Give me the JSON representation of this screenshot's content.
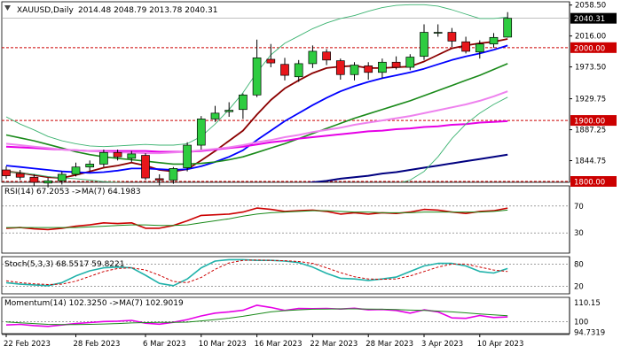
{
  "colors": {
    "bull": "#2ecc40",
    "bear": "#e8161b",
    "ma_red": "#8b0000",
    "ma_blue": "#0000ff",
    "ma_green": "#1a8a1a",
    "ma_magenta": "#e600e6",
    "ma_pink": "#ee82ee",
    "ma_navy": "#000080",
    "bb": "#3cb371",
    "level_line": "#cc0000",
    "rsi_line": "#cc0000",
    "rsi_ma": "#1a8a1a",
    "stoch_main": "#20b2aa",
    "stoch_signal": "#cc0000",
    "mom_line": "#e600e6",
    "mom_ma": "#1a8a1a"
  },
  "chart_data": [
    {
      "type": "candlestick",
      "title": "XAUUSD,Daily",
      "ohlc_label": "2014.48 2048.79 2013.78 2040.31",
      "price_axis": {
        "range": [
          1815,
          2063
        ],
        "ticks": [
          2058.5,
          2016.0,
          1973.5,
          1929.75,
          1887.25,
          1844.75
        ]
      },
      "price_axis_labels": [
        "2058.50",
        "2016.00",
        "1973.50",
        "1929.75",
        "1887.25",
        "1844.75"
      ],
      "price_box": {
        "value": 2040.31,
        "label": "2040.31"
      },
      "levels": [
        {
          "value": 2000,
          "label": "2000.00"
        },
        {
          "value": 1900,
          "label": "1900.00"
        },
        {
          "value": 1800,
          "label": "1800.00"
        }
      ],
      "candles": [
        {
          "o": 1832,
          "h": 1837,
          "l": 1820,
          "c": 1824
        },
        {
          "o": 1827,
          "h": 1832,
          "l": 1818,
          "c": 1822
        },
        {
          "o": 1822,
          "h": 1826,
          "l": 1810,
          "c": 1815
        },
        {
          "o": 1814,
          "h": 1821,
          "l": 1808,
          "c": 1817
        },
        {
          "o": 1817,
          "h": 1830,
          "l": 1812,
          "c": 1826
        },
        {
          "o": 1826,
          "h": 1842,
          "l": 1823,
          "c": 1836
        },
        {
          "o": 1836,
          "h": 1845,
          "l": 1830,
          "c": 1840
        },
        {
          "o": 1840,
          "h": 1860,
          "l": 1836,
          "c": 1856
        },
        {
          "o": 1856,
          "h": 1860,
          "l": 1845,
          "c": 1850
        },
        {
          "o": 1848,
          "h": 1858,
          "l": 1843,
          "c": 1854
        },
        {
          "o": 1852,
          "h": 1855,
          "l": 1818,
          "c": 1821
        },
        {
          "o": 1820,
          "h": 1826,
          "l": 1811,
          "c": 1818
        },
        {
          "o": 1818,
          "h": 1836,
          "l": 1813,
          "c": 1834
        },
        {
          "o": 1835,
          "h": 1870,
          "l": 1830,
          "c": 1866
        },
        {
          "o": 1866,
          "h": 1906,
          "l": 1860,
          "c": 1902
        },
        {
          "o": 1902,
          "h": 1920,
          "l": 1898,
          "c": 1910
        },
        {
          "o": 1912,
          "h": 1925,
          "l": 1905,
          "c": 1914
        },
        {
          "o": 1915,
          "h": 1937,
          "l": 1902,
          "c": 1935
        },
        {
          "o": 1935,
          "h": 2011,
          "l": 1932,
          "c": 1986
        },
        {
          "o": 1984,
          "h": 2005,
          "l": 1973,
          "c": 1979
        },
        {
          "o": 1977,
          "h": 1986,
          "l": 1955,
          "c": 1962
        },
        {
          "o": 1960,
          "h": 1983,
          "l": 1953,
          "c": 1978
        },
        {
          "o": 1978,
          "h": 2003,
          "l": 1972,
          "c": 1995
        },
        {
          "o": 1994,
          "h": 1998,
          "l": 1976,
          "c": 1983
        },
        {
          "o": 1982,
          "h": 1985,
          "l": 1956,
          "c": 1963
        },
        {
          "o": 1963,
          "h": 1980,
          "l": 1955,
          "c": 1976
        },
        {
          "o": 1975,
          "h": 1980,
          "l": 1956,
          "c": 1966
        },
        {
          "o": 1966,
          "h": 1985,
          "l": 1958,
          "c": 1980
        },
        {
          "o": 1980,
          "h": 1988,
          "l": 1970,
          "c": 1973
        },
        {
          "o": 1973,
          "h": 1991,
          "l": 1969,
          "c": 1987
        },
        {
          "o": 1988,
          "h": 2032,
          "l": 1983,
          "c": 2021
        },
        {
          "o": 2020,
          "h": 2032,
          "l": 2015,
          "c": 2021
        },
        {
          "o": 2021,
          "h": 2027,
          "l": 2001,
          "c": 2009
        },
        {
          "o": 2008,
          "h": 2015,
          "l": 1992,
          "c": 1995
        },
        {
          "o": 1994,
          "h": 2010,
          "l": 1985,
          "c": 2005
        },
        {
          "o": 2005,
          "h": 2020,
          "l": 2000,
          "c": 2014
        },
        {
          "o": 2014.48,
          "h": 2048.79,
          "l": 2013.78,
          "c": 2040.31
        }
      ],
      "series": [
        {
          "style": "ma_red",
          "values": [
            1830,
            1828,
            1825,
            1822,
            1821,
            1825,
            1830,
            1835,
            1838,
            1842,
            1838,
            1832,
            1830,
            1833,
            1845,
            1858,
            1872,
            1886,
            1908,
            1928,
            1944,
            1955,
            1965,
            1972,
            1974,
            1975,
            1972,
            1972,
            1973,
            1974,
            1981,
            1990,
            1999,
            2003,
            2006,
            2008,
            2012
          ]
        },
        {
          "style": "ma_blue",
          "values": [
            1838,
            1836,
            1834,
            1832,
            1830,
            1829,
            1828,
            1829,
            1831,
            1834,
            1834,
            1833,
            1832,
            1833,
            1837,
            1843,
            1850,
            1859,
            1873,
            1886,
            1899,
            1910,
            1921,
            1931,
            1940,
            1947,
            1953,
            1958,
            1962,
            1966,
            1971,
            1977,
            1983,
            1988,
            1992,
            1997,
            2003
          ]
        },
        {
          "style": "ma_green",
          "values": [
            1880,
            1876,
            1872,
            1867,
            1862,
            1857,
            1853,
            1850,
            1848,
            1846,
            1844,
            1842,
            1840,
            1840,
            1841,
            1843,
            1846,
            1850,
            1856,
            1862,
            1868,
            1875,
            1882,
            1889,
            1896,
            1903,
            1909,
            1915,
            1921,
            1927,
            1934,
            1941,
            1948,
            1955,
            1962,
            1970,
            1978
          ]
        },
        {
          "style": "ma_magenta",
          "values": [
            1864,
            1863,
            1862,
            1861,
            1860,
            1859,
            1858,
            1858,
            1858,
            1858,
            1858,
            1857,
            1857,
            1857,
            1858,
            1860,
            1862,
            1864,
            1867,
            1870,
            1872,
            1875,
            1877,
            1879,
            1881,
            1883,
            1885,
            1886,
            1888,
            1889,
            1891,
            1892,
            1894,
            1895,
            1897,
            1898,
            1899
          ]
        },
        {
          "style": "ma_pink",
          "values": [
            1868,
            1866,
            1864,
            1862,
            1860,
            1859,
            1858,
            1857,
            1856,
            1856,
            1855,
            1855,
            1856,
            1857,
            1859,
            1861,
            1863,
            1866,
            1870,
            1873,
            1877,
            1880,
            1884,
            1887,
            1890,
            1894,
            1897,
            1900,
            1903,
            1906,
            1910,
            1914,
            1918,
            1922,
            1927,
            1933,
            1940
          ]
        },
        {
          "style": "ma_navy",
          "values": [
            1779,
            1780,
            1781,
            1782,
            1783,
            1784,
            1785,
            1786,
            1787,
            1789,
            1790,
            1791,
            1792,
            1794,
            1796,
            1798,
            1800,
            1802,
            1805,
            1807,
            1810,
            1812,
            1815,
            1817,
            1820,
            1822,
            1824,
            1827,
            1829,
            1832,
            1835,
            1838,
            1841,
            1844,
            1847,
            1850,
            1853
          ]
        },
        {
          "style": "bb",
          "values": [
            1905,
            1895,
            1887,
            1878,
            1872,
            1868,
            1865,
            1864,
            1865,
            1866,
            1867,
            1866,
            1866,
            1868,
            1878,
            1895,
            1915,
            1938,
            1966,
            1990,
            2006,
            2016,
            2026,
            2034,
            2040,
            2044,
            2050,
            2055,
            2058,
            2059,
            2059,
            2057,
            2052,
            2046,
            2040,
            2040,
            2042
          ]
        },
        {
          "style": "bb",
          "values": [
            1830,
            1828,
            1826,
            1823,
            1821,
            1820,
            1818,
            1816,
            1815,
            1814,
            1812,
            1810,
            1808,
            1806,
            1805,
            1802,
            1800,
            1800,
            1800,
            1800,
            1800,
            1800,
            1800,
            1801,
            1802,
            1804,
            1806,
            1809,
            1813,
            1818,
            1830,
            1850,
            1875,
            1895,
            1910,
            1922,
            1932
          ]
        }
      ]
    },
    {
      "type": "line",
      "label": "RSI(14) 67.2053 ->MA(7) 64.1983",
      "levels": [
        70,
        30
      ],
      "y_axis_labels": [
        "70",
        "30"
      ],
      "range": [
        0,
        100
      ],
      "series": [
        {
          "style": "rsi_line",
          "values": [
            37,
            38,
            36,
            35,
            37,
            40,
            42,
            45,
            44,
            45,
            37,
            37,
            41,
            48,
            56,
            57,
            58,
            61,
            67,
            65,
            62,
            63,
            64,
            62,
            58,
            60,
            58,
            60,
            59,
            61,
            65,
            64,
            61,
            59,
            62,
            63,
            67
          ]
        },
        {
          "style": "rsi_ma",
          "values": [
            38,
            38,
            38,
            38,
            38,
            38,
            39,
            40,
            41,
            42,
            42,
            41,
            41,
            42,
            45,
            48,
            51,
            55,
            58,
            60,
            61,
            62,
            63,
            63,
            62,
            61,
            61,
            60,
            60,
            60,
            61,
            61,
            61,
            61,
            61,
            62,
            64
          ]
        }
      ]
    },
    {
      "type": "line",
      "label": "Stoch(5,3,3) 68.5517 59.8221",
      "levels": [
        80,
        20
      ],
      "y_axis_labels": [
        "80",
        "20"
      ],
      "range": [
        0,
        100
      ],
      "series": [
        {
          "style": "stoch_main",
          "values": [
            30,
            26,
            24,
            22,
            30,
            48,
            62,
            70,
            72,
            70,
            50,
            28,
            22,
            40,
            70,
            88,
            92,
            92,
            90,
            90,
            88,
            84,
            72,
            55,
            42,
            40,
            36,
            40,
            45,
            60,
            75,
            82,
            82,
            75,
            60,
            56,
            68
          ]
        },
        {
          "style": "stoch_signal",
          "values": [
            35,
            30,
            27,
            25,
            26,
            34,
            47,
            60,
            68,
            70,
            64,
            50,
            33,
            30,
            44,
            66,
            83,
            90,
            91,
            90,
            89,
            87,
            82,
            70,
            57,
            46,
            40,
            39,
            40,
            48,
            60,
            72,
            80,
            80,
            72,
            64,
            60
          ]
        }
      ]
    },
    {
      "type": "line",
      "label": "Momentum(14) 102.3250 ->MA(7) 102.9019",
      "levels": [
        100
      ],
      "y_axis_labels": [
        "110.15",
        "100",
        "94.7319"
      ],
      "range": [
        94,
        112
      ],
      "series": [
        {
          "style": "mom_line",
          "values": [
            98.3,
            98.6,
            98.0,
            97.6,
            98.3,
            99.0,
            99.5,
            100.0,
            100.2,
            100.6,
            99.2,
            98.7,
            99.6,
            101.0,
            102.8,
            104.2,
            104.8,
            105.6,
            108.1,
            107.0,
            105.5,
            106.5,
            106.4,
            106.5,
            106.2,
            106.6,
            105.8,
            106.0,
            105.5,
            104.2,
            105.8,
            104.8,
            101.8,
            101.6,
            103.0,
            102.0,
            102.3
          ]
        },
        {
          "style": "mom_ma",
          "values": [
            99.8,
            99.4,
            99.0,
            98.6,
            98.5,
            98.5,
            98.6,
            98.8,
            99.0,
            99.3,
            99.5,
            99.6,
            99.6,
            99.7,
            100.3,
            101.0,
            101.7,
            102.6,
            103.7,
            104.8,
            105.4,
            105.8,
            106.1,
            106.2,
            106.3,
            106.3,
            106.2,
            106.1,
            106.0,
            105.7,
            105.5,
            105.2,
            104.8,
            104.3,
            103.8,
            103.3,
            102.9
          ]
        }
      ]
    }
  ],
  "x_axis": {
    "labels": [
      {
        "index": 0,
        "text": "22 Feb 2023"
      },
      {
        "index": 5,
        "text": "28 Feb 2023"
      },
      {
        "index": 10,
        "text": "6 Mar 2023"
      },
      {
        "index": 14,
        "text": "10 Mar 2023"
      },
      {
        "index": 18,
        "text": "16 Mar 2023"
      },
      {
        "index": 22,
        "text": "22 Mar 2023"
      },
      {
        "index": 26,
        "text": "28 Mar 2023"
      },
      {
        "index": 30,
        "text": "3 Apr 2023"
      },
      {
        "index": 34,
        "text": "10 Apr 2023"
      }
    ]
  }
}
